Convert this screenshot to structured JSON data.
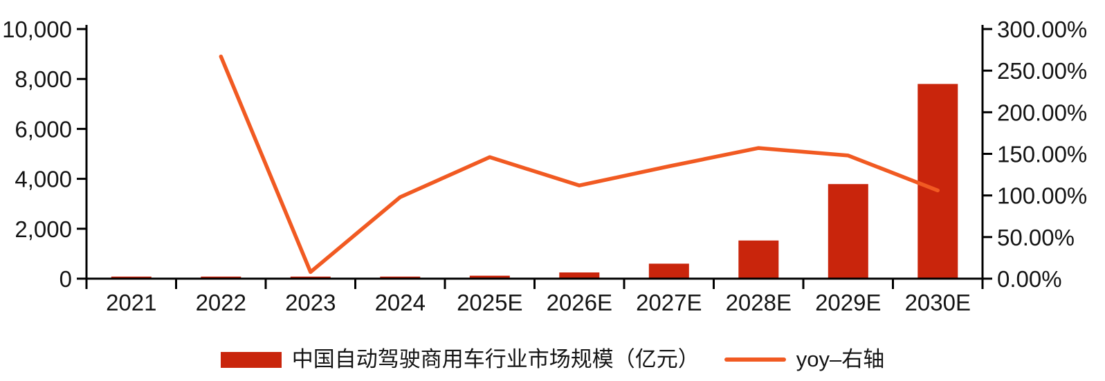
{
  "chart_data": {
    "type": "combo-bar-line",
    "categories": [
      "2021",
      "2022",
      "2023",
      "2024",
      "2025E",
      "2026E",
      "2027E",
      "2028E",
      "2029E",
      "2030E"
    ],
    "series": [
      {
        "name": "中国自动驾驶商用车行业市场规模（亿元）",
        "type": "bar",
        "axis": "left",
        "color": "#C9250C",
        "values": [
          6,
          22,
          24,
          48,
          120,
          250,
          600,
          1530,
          3790,
          7800
        ]
      },
      {
        "name": "yoy–右轴",
        "type": "line",
        "axis": "right",
        "color": "#F15A22",
        "values": [
          null,
          267,
          8,
          98,
          146,
          112,
          135,
          157,
          148,
          106
        ]
      }
    ],
    "left_axis": {
      "min": 0,
      "max": 10000,
      "tick_step": 2000,
      "tick_labels": [
        "0",
        "2,000",
        "4,000",
        "6,000",
        "8,000",
        "10,000"
      ]
    },
    "right_axis": {
      "min": 0,
      "max": 300,
      "unit": "%",
      "tick_step": 50,
      "tick_labels": [
        "0.00%",
        "50.00%",
        "100.00%",
        "150.00%",
        "200.00%",
        "250.00%",
        "300.00%"
      ]
    },
    "grid": "off",
    "legend_position": "bottom",
    "axis_color": "#000000",
    "text_color": "#141414"
  },
  "legend": {
    "items": [
      {
        "label": "中国自动驾驶商用车行业市场规模（亿元）",
        "marker": "bar-swatch"
      },
      {
        "label": "yoy–右轴",
        "marker": "line-swatch"
      }
    ]
  }
}
